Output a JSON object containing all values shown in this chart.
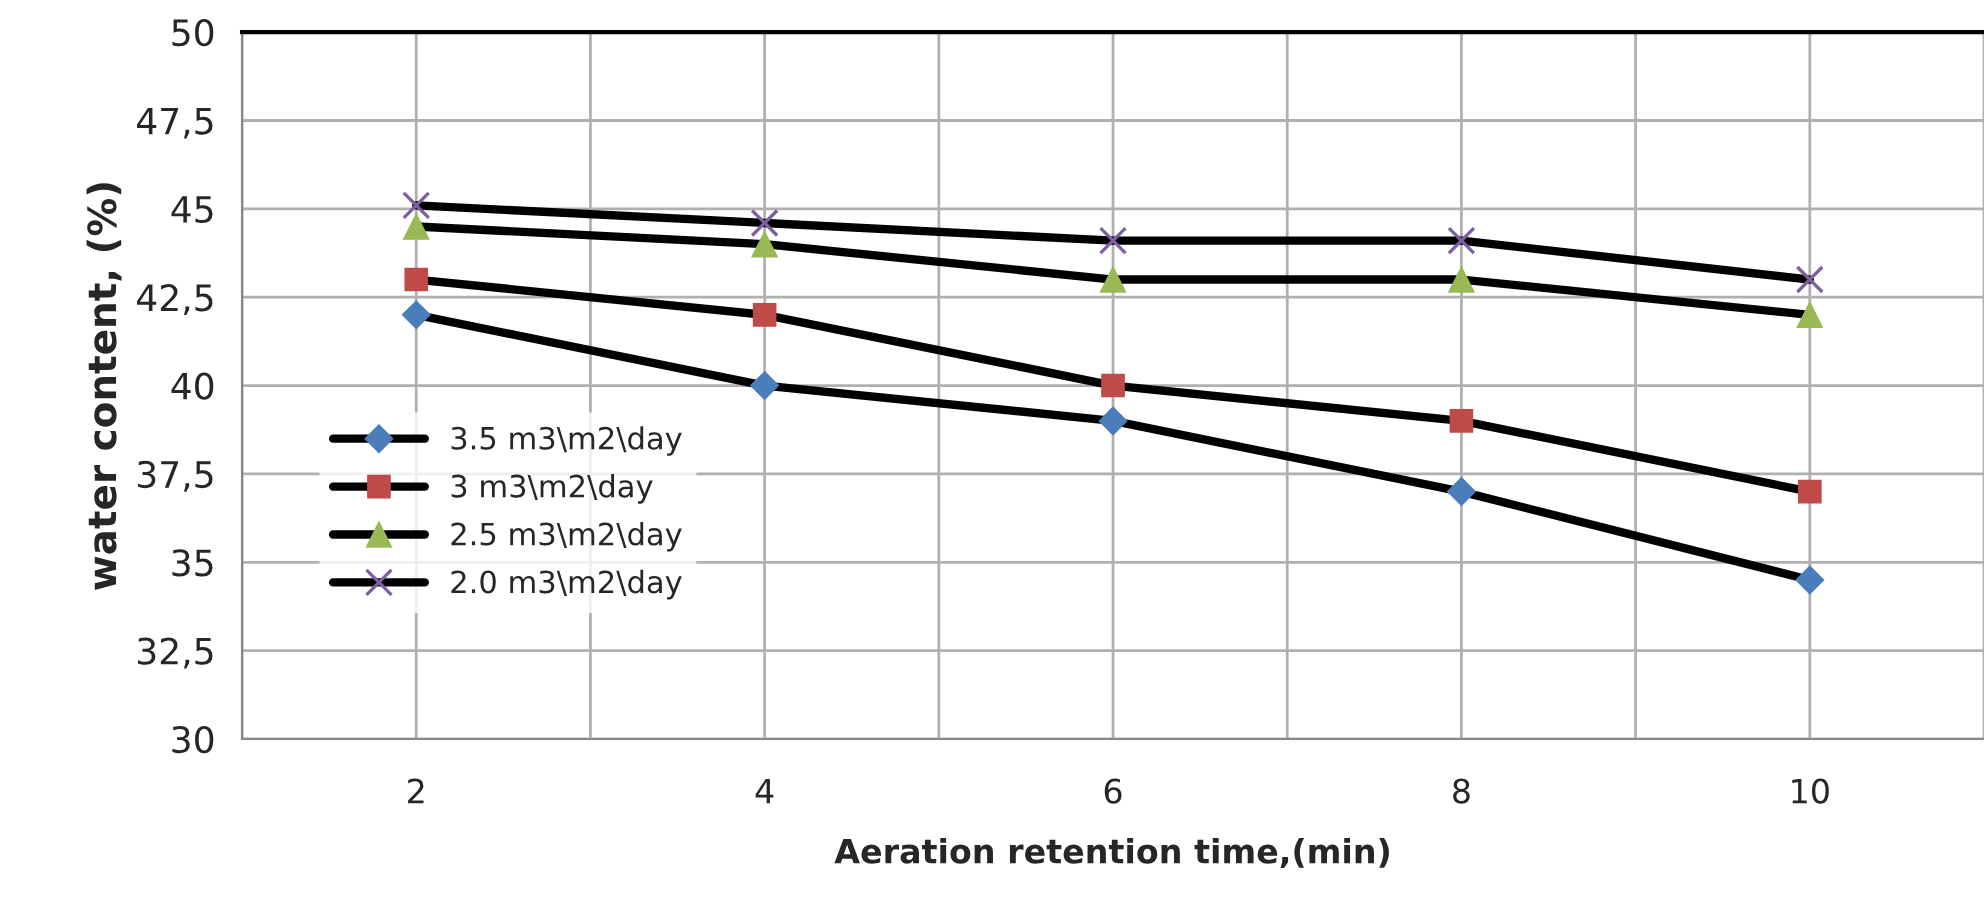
{
  "chart_data": {
    "type": "line",
    "xlabel": "Aeration retention time,(min)",
    "ylabel": "water content, (%)",
    "categories": [
      "2",
      "4",
      "6",
      "8",
      "10"
    ],
    "series": [
      {
        "name": "3.5 m3\\m2\\day",
        "color": "#4a7ebb",
        "marker": "diamond",
        "values": [
          42,
          40,
          39,
          37,
          34.5
        ]
      },
      {
        "name": "3 m3\\m2\\day",
        "color": "#be4b48",
        "marker": "square",
        "values": [
          43,
          42,
          40,
          39,
          37
        ]
      },
      {
        "name": "2.5 m3\\m2\\day",
        "color": "#98b954",
        "marker": "triangle",
        "values": [
          44.5,
          44,
          43,
          43,
          42
        ]
      },
      {
        "name": "2.0 m3\\m2\\day",
        "color": "#7d60a0",
        "marker": "cross",
        "values": [
          45.1,
          44.6,
          44.1,
          44.1,
          43
        ]
      }
    ],
    "ylim": [
      30,
      50
    ],
    "yticks": [
      30,
      {
        "value": 32.5,
        "label": "32,5"
      },
      35,
      {
        "value": 37.5,
        "label": "37,5"
      },
      40,
      {
        "value": 42.5,
        "label": "42,5"
      },
      45,
      {
        "value": 47.5,
        "label": "47,5"
      },
      50
    ],
    "grid": true,
    "legend": "left",
    "line_style": "solid"
  }
}
